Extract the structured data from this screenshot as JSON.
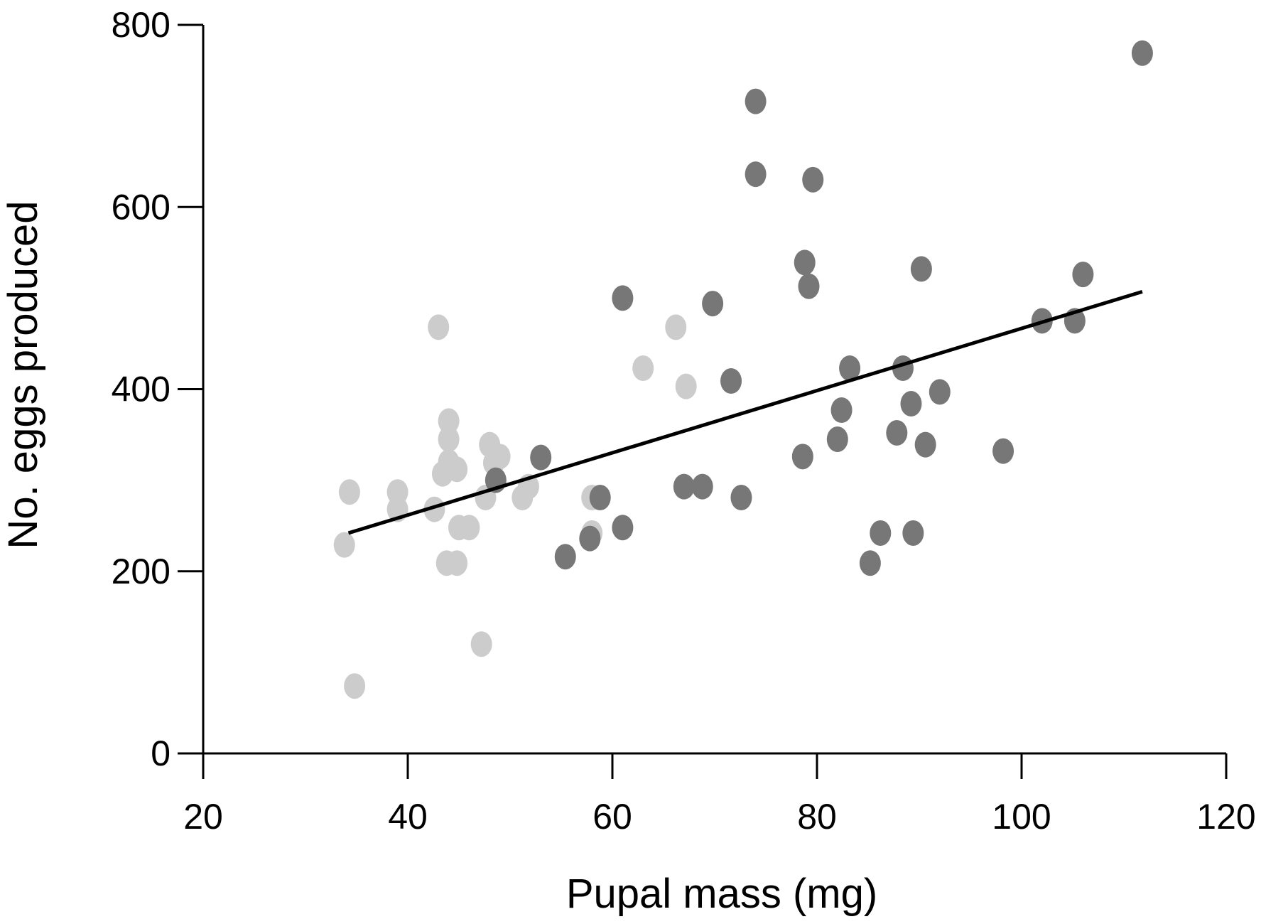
{
  "chart_data": {
    "type": "scatter",
    "title": "",
    "xlabel": "Pupal mass (mg)",
    "ylabel": "No. eggs produced",
    "xlim": [
      20,
      120
    ],
    "ylim": [
      0,
      800
    ],
    "xticks": [
      "20",
      "40",
      "60",
      "80",
      "100",
      "120"
    ],
    "yticks": [
      "0",
      "200",
      "400",
      "600",
      "800"
    ],
    "grid": false,
    "legend": "none",
    "series": [
      {
        "color": "#cccccc",
        "points": [
          [
            33.8,
            229
          ],
          [
            34.3,
            287
          ],
          [
            34.8,
            74
          ],
          [
            39.0,
            287
          ],
          [
            39.0,
            268
          ],
          [
            42.6,
            268
          ],
          [
            43.0,
            468
          ],
          [
            43.4,
            307
          ],
          [
            43.8,
            209
          ],
          [
            44.0,
            345
          ],
          [
            44.0,
            365
          ],
          [
            44.0,
            320
          ],
          [
            44.8,
            209
          ],
          [
            44.8,
            312
          ],
          [
            45.0,
            248
          ],
          [
            46.0,
            248
          ],
          [
            47.2,
            120
          ],
          [
            47.6,
            281
          ],
          [
            48.0,
            339
          ],
          [
            48.4,
            319
          ],
          [
            49.0,
            326
          ],
          [
            51.2,
            281
          ],
          [
            51.8,
            293
          ],
          [
            58.0,
            281
          ],
          [
            58.0,
            242
          ],
          [
            63.0,
            423
          ],
          [
            66.2,
            468
          ],
          [
            67.2,
            403
          ]
        ]
      },
      {
        "color": "#777777",
        "points": [
          [
            48.6,
            300
          ],
          [
            53.0,
            325
          ],
          [
            55.4,
            216
          ],
          [
            57.8,
            236
          ],
          [
            58.8,
            281
          ],
          [
            61.0,
            248
          ],
          [
            61.0,
            500
          ],
          [
            67.0,
            293
          ],
          [
            68.8,
            293
          ],
          [
            69.8,
            494
          ],
          [
            71.6,
            409
          ],
          [
            72.6,
            281
          ],
          [
            74.0,
            716
          ],
          [
            74.0,
            636
          ],
          [
            78.6,
            326
          ],
          [
            78.8,
            539
          ],
          [
            79.2,
            513
          ],
          [
            79.6,
            630
          ],
          [
            82.0,
            345
          ],
          [
            82.4,
            377
          ],
          [
            83.2,
            423
          ],
          [
            85.2,
            209
          ],
          [
            86.2,
            242
          ],
          [
            87.8,
            352
          ],
          [
            88.4,
            423
          ],
          [
            89.2,
            384
          ],
          [
            89.4,
            242
          ],
          [
            90.2,
            532
          ],
          [
            90.6,
            339
          ],
          [
            92.0,
            397
          ],
          [
            98.2,
            332
          ],
          [
            102.0,
            475
          ],
          [
            105.2,
            475
          ],
          [
            106.0,
            526
          ],
          [
            111.8,
            769
          ]
        ]
      }
    ],
    "trendline": {
      "x": [
        34.2,
        111.8
      ],
      "y": [
        242,
        507
      ]
    }
  }
}
